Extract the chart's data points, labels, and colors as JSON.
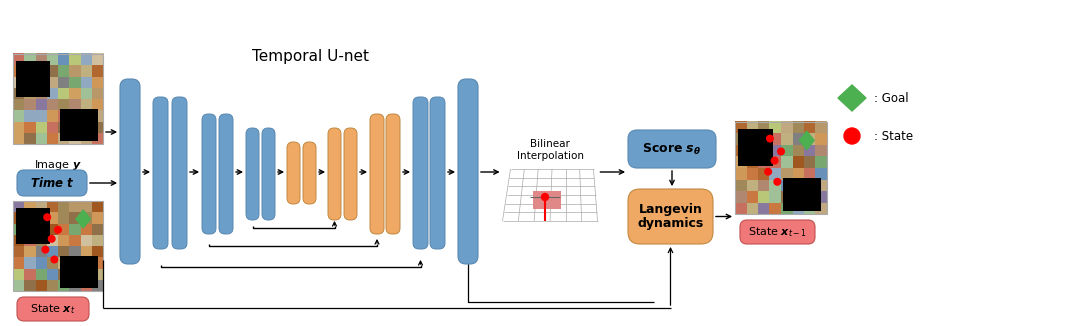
{
  "bg_color": "#ffffff",
  "blue_color": "#6b9fca",
  "orange_color": "#f0a865",
  "red_color": "#f07878",
  "green_color": "#5cb85c",
  "text_color": "#111111",
  "temporal_unet_label": "Temporal U-net",
  "bilinear_label": "Bilinear\nInterpolation",
  "score_label": "Score $\\boldsymbol{s}_{\\boldsymbol{\\theta}}$",
  "langevin_label": "Langevin\ndynamics",
  "image_label": "Image $\\boldsymbol{y}$",
  "time_label": "Time $\\boldsymbol{t}$",
  "state_t_label": "State $\\boldsymbol{x}_t$",
  "state_t1_label": "State $\\boldsymbol{x}_{t-1}$",
  "goal_label": ": Goal",
  "state_label": ": State"
}
